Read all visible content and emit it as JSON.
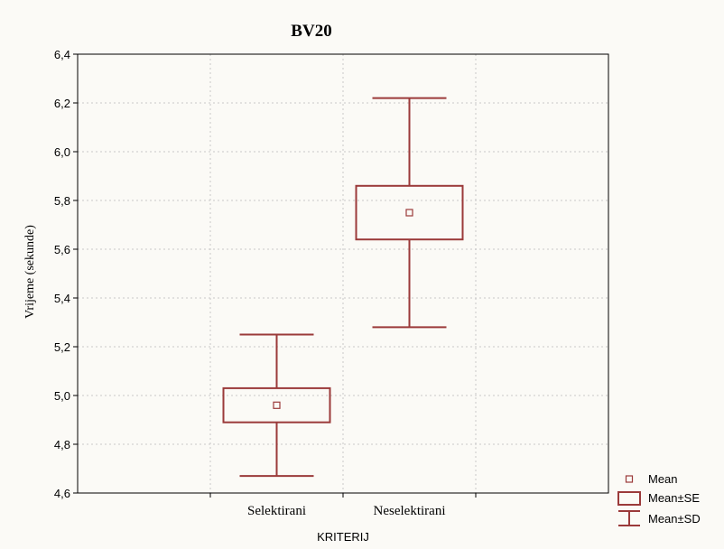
{
  "chart_data": {
    "type": "box",
    "title": "BV20",
    "xlabel": "KRITERIJ",
    "ylabel": "Vrijeme (sekunde)",
    "ylim": [
      4.6,
      6.4
    ],
    "yticks": [
      "4,6",
      "4,8",
      "5,0",
      "5,2",
      "5,4",
      "5,6",
      "5,8",
      "6,0",
      "6,2",
      "6,4"
    ],
    "ytick_values": [
      4.6,
      4.8,
      5.0,
      5.2,
      5.4,
      5.6,
      5.8,
      6.0,
      6.2,
      6.4
    ],
    "grid": true,
    "legend_position": "bottom-right",
    "color": "#9b3a3a",
    "categories": [
      "Selektirani",
      "Neselektirani"
    ],
    "groups": [
      {
        "label": "Selektirani",
        "mean": 4.96,
        "se_low": 4.89,
        "se_high": 5.03,
        "sd_low": 4.67,
        "sd_high": 5.25
      },
      {
        "label": "Neselektirani",
        "mean": 5.75,
        "se_low": 5.64,
        "se_high": 5.86,
        "sd_low": 5.28,
        "sd_high": 6.22
      }
    ],
    "legend": [
      {
        "key": "mean",
        "label": "Mean"
      },
      {
        "key": "se",
        "label": "Mean±SE"
      },
      {
        "key": "sd",
        "label": "Mean±SD"
      }
    ]
  }
}
